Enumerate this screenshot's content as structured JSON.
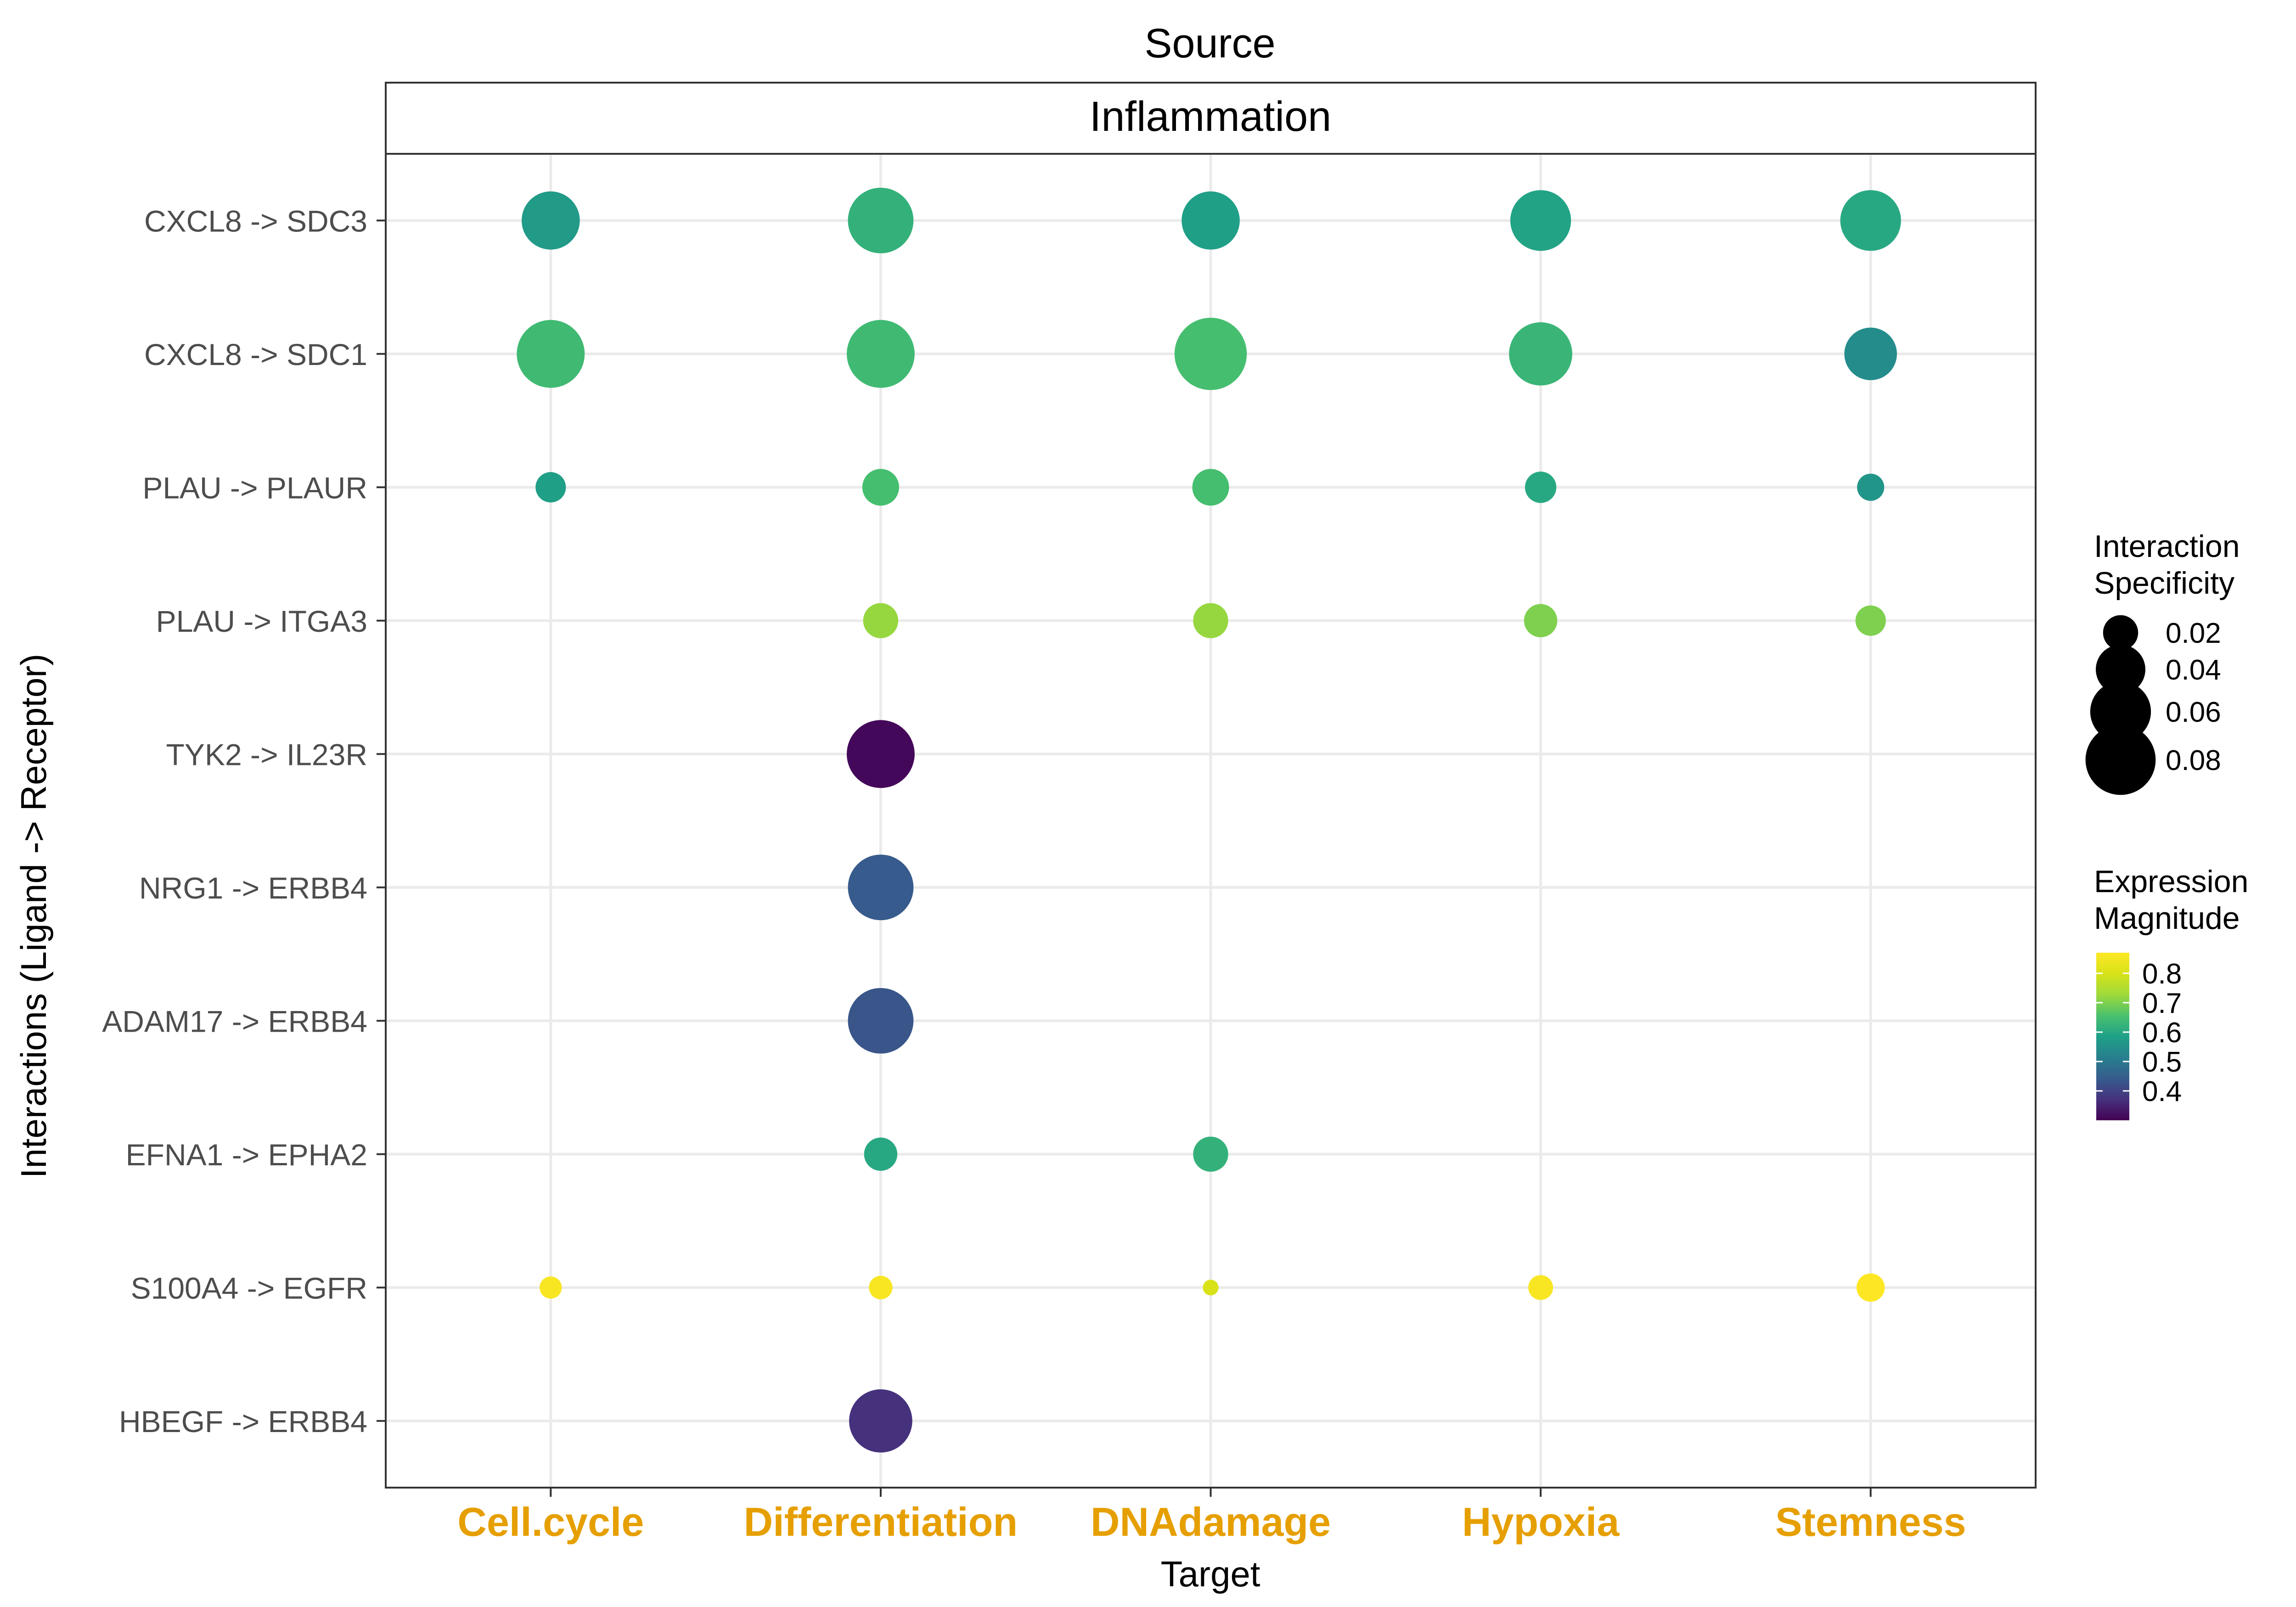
{
  "chart_data": {
    "type": "scatter",
    "title": "Source",
    "facet_label": "Inflammation",
    "xlabel": "Target",
    "ylabel": "Interactions (Ligand -> Receptor)",
    "categories_x": [
      "Cell.cycle",
      "Differentiation",
      "DNAdamage",
      "Hypoxia",
      "Stemness"
    ],
    "categories_y": [
      "CXCL8 -> SDC3",
      "CXCL8 -> SDC1",
      "PLAU -> PLAUR",
      "PLAU -> ITGA3",
      "TYK2 -> IL23R",
      "NRG1 -> ERBB4",
      "ADAM17 -> ERBB4",
      "EFNA1 -> EPHA2",
      "S100A4 -> EGFR",
      "HBEGF -> ERBB4"
    ],
    "x_tick_color": "#E69F00",
    "grid": true,
    "points": [
      {
        "x": "Cell.cycle",
        "y": "CXCL8 -> SDC3",
        "specificity": 0.055,
        "magnitude": 0.57
      },
      {
        "x": "Differentiation",
        "y": "CXCL8 -> SDC3",
        "specificity": 0.07,
        "magnitude": 0.62
      },
      {
        "x": "DNAdamage",
        "y": "CXCL8 -> SDC3",
        "specificity": 0.055,
        "magnitude": 0.58
      },
      {
        "x": "Hypoxia",
        "y": "CXCL8 -> SDC3",
        "specificity": 0.06,
        "magnitude": 0.59
      },
      {
        "x": "Stemness",
        "y": "CXCL8 -> SDC3",
        "specificity": 0.06,
        "magnitude": 0.6
      },
      {
        "x": "Cell.cycle",
        "y": "CXCL8 -> SDC1",
        "specificity": 0.075,
        "magnitude": 0.64
      },
      {
        "x": "Differentiation",
        "y": "CXCL8 -> SDC1",
        "specificity": 0.075,
        "magnitude": 0.64
      },
      {
        "x": "DNAdamage",
        "y": "CXCL8 -> SDC1",
        "specificity": 0.085,
        "magnitude": 0.65
      },
      {
        "x": "Hypoxia",
        "y": "CXCL8 -> SDC1",
        "specificity": 0.065,
        "magnitude": 0.63
      },
      {
        "x": "Stemness",
        "y": "CXCL8 -> SDC1",
        "specificity": 0.045,
        "magnitude": 0.54
      },
      {
        "x": "Cell.cycle",
        "y": "PLAU -> PLAUR",
        "specificity": 0.015,
        "magnitude": 0.58
      },
      {
        "x": "Differentiation",
        "y": "PLAU -> PLAUR",
        "specificity": 0.022,
        "magnitude": 0.65
      },
      {
        "x": "DNAdamage",
        "y": "PLAU -> PLAUR",
        "specificity": 0.022,
        "magnitude": 0.65
      },
      {
        "x": "Hypoxia",
        "y": "PLAU -> PLAUR",
        "specificity": 0.016,
        "magnitude": 0.6
      },
      {
        "x": "Stemness",
        "y": "PLAU -> PLAUR",
        "specificity": 0.012,
        "magnitude": 0.56
      },
      {
        "x": "Differentiation",
        "y": "PLAU -> ITGA3",
        "specificity": 0.02,
        "magnitude": 0.72
      },
      {
        "x": "DNAdamage",
        "y": "PLAU -> ITGA3",
        "specificity": 0.02,
        "magnitude": 0.72
      },
      {
        "x": "Hypoxia",
        "y": "PLAU -> ITGA3",
        "specificity": 0.018,
        "magnitude": 0.7
      },
      {
        "x": "Stemness",
        "y": "PLAU -> ITGA3",
        "specificity": 0.015,
        "magnitude": 0.7
      },
      {
        "x": "Differentiation",
        "y": "TYK2 -> IL23R",
        "specificity": 0.075,
        "magnitude": 0.31
      },
      {
        "x": "Differentiation",
        "y": "NRG1 -> ERBB4",
        "specificity": 0.07,
        "magnitude": 0.44
      },
      {
        "x": "Differentiation",
        "y": "ADAM17 -> ERBB4",
        "specificity": 0.07,
        "magnitude": 0.43
      },
      {
        "x": "Differentiation",
        "y": "EFNA1 -> EPHA2",
        "specificity": 0.018,
        "magnitude": 0.6
      },
      {
        "x": "DNAdamage",
        "y": "EFNA1 -> EPHA2",
        "specificity": 0.02,
        "magnitude": 0.62
      },
      {
        "x": "Cell.cycle",
        "y": "S100A4 -> EGFR",
        "specificity": 0.008,
        "magnitude": 0.86
      },
      {
        "x": "Differentiation",
        "y": "S100A4 -> EGFR",
        "specificity": 0.009,
        "magnitude": 0.86
      },
      {
        "x": "DNAdamage",
        "y": "S100A4 -> EGFR",
        "specificity": 0.004,
        "magnitude": 0.8
      },
      {
        "x": "Hypoxia",
        "y": "S100A4 -> EGFR",
        "specificity": 0.01,
        "magnitude": 0.86
      },
      {
        "x": "Stemness",
        "y": "S100A4 -> EGFR",
        "specificity": 0.013,
        "magnitude": 0.87
      },
      {
        "x": "Differentiation",
        "y": "HBEGF -> ERBB4",
        "specificity": 0.065,
        "magnitude": 0.37
      }
    ],
    "legend_size": {
      "title_lines": [
        "Interaction",
        "Specificity"
      ],
      "breaks": [
        0.02,
        0.04,
        0.06,
        0.08
      ],
      "labels": [
        "0.02",
        "0.04",
        "0.06",
        "0.08"
      ],
      "color": "#000000"
    },
    "legend_color": {
      "title_lines": [
        "Expression",
        "Magnitude"
      ],
      "range": [
        0.3,
        0.87
      ],
      "breaks": [
        0.8,
        0.7,
        0.6,
        0.5,
        0.4
      ],
      "labels": [
        "0.8",
        "0.7",
        "0.6",
        "0.5",
        "0.4"
      ],
      "palette": "viridis"
    },
    "legend_placement": "right"
  }
}
